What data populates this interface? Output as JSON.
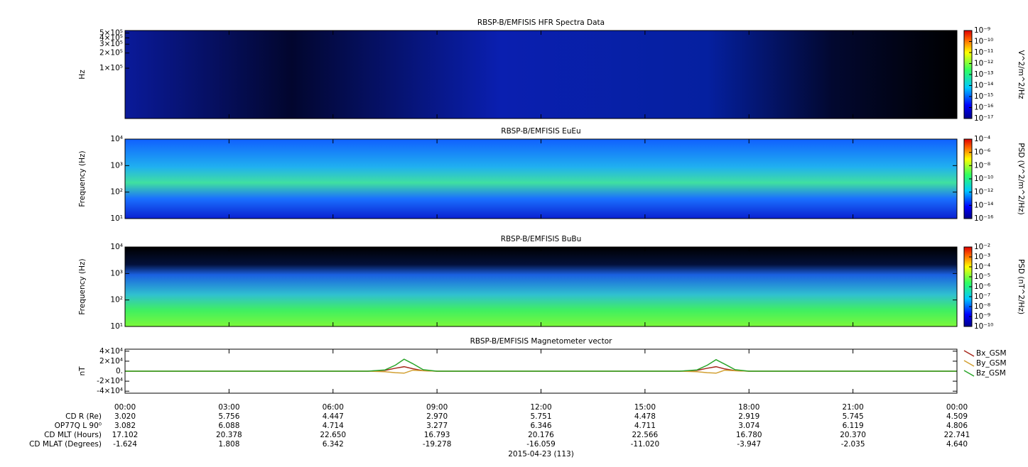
{
  "chart_data": [
    {
      "type": "spectrogram",
      "title": "RBSP-B/EMFISIS  HFR Spectra Data",
      "ylabel": "Hz",
      "ylog": true,
      "ylim": [
        10000,
        560000
      ],
      "yticks": [
        {
          "value": 100000,
          "label": "1×10⁵"
        },
        {
          "value": 200000,
          "label": "2×10⁵"
        },
        {
          "value": 300000,
          "label": "3×10⁵"
        },
        {
          "value": 400000,
          "label": "4×10⁵"
        },
        {
          "value": 500000,
          "label": "5×10⁵"
        }
      ],
      "zlabel": "V^2/m^2/Hz",
      "zlim": [
        1e-17,
        1e-09
      ],
      "zticks": [
        {
          "value": 1e-17,
          "label": "10⁻¹⁷"
        },
        {
          "value": 1e-16,
          "label": "10⁻¹⁶"
        },
        {
          "value": 1e-15,
          "label": "10⁻¹⁵"
        },
        {
          "value": 1e-14,
          "label": "10⁻¹⁴"
        },
        {
          "value": 1e-13,
          "label": "10⁻¹³"
        },
        {
          "value": 1e-12,
          "label": "10⁻¹²"
        },
        {
          "value": 1e-11,
          "label": "10⁻¹¹"
        },
        {
          "value": 1e-10,
          "label": "10⁻¹⁰"
        },
        {
          "value": 1e-09,
          "label": "10⁻⁹"
        }
      ]
    },
    {
      "type": "spectrogram",
      "title": "RBSP-B/EMFISIS  EuEu",
      "ylabel": "Frequency (Hz)",
      "ylog": true,
      "ylim": [
        10,
        10000
      ],
      "yticks": [
        {
          "value": 10,
          "label": "10¹"
        },
        {
          "value": 100,
          "label": "10²"
        },
        {
          "value": 1000,
          "label": "10³"
        },
        {
          "value": 10000,
          "label": "10⁴"
        }
      ],
      "zlabel": "PSD (V^2/m^2/Hz)",
      "zlim": [
        1e-16,
        0.0001
      ],
      "zticks": [
        {
          "value": 1e-16,
          "label": "10⁻¹⁶"
        },
        {
          "value": 1e-14,
          "label": "10⁻¹⁴"
        },
        {
          "value": 1e-12,
          "label": "10⁻¹²"
        },
        {
          "value": 1e-10,
          "label": "10⁻¹⁰"
        },
        {
          "value": 1e-08,
          "label": "10⁻⁸"
        },
        {
          "value": 1e-06,
          "label": "10⁻⁶"
        },
        {
          "value": 0.0001,
          "label": "10⁻⁴"
        }
      ]
    },
    {
      "type": "spectrogram",
      "title": "RBSP-B/EMFISIS  BuBu",
      "ylabel": "Frequency (Hz)",
      "ylog": true,
      "ylim": [
        10,
        10000
      ],
      "yticks": [
        {
          "value": 10,
          "label": "10¹"
        },
        {
          "value": 100,
          "label": "10²"
        },
        {
          "value": 1000,
          "label": "10³"
        },
        {
          "value": 10000,
          "label": "10⁴"
        }
      ],
      "zlabel": "PSD (nT^2/Hz)",
      "zlim": [
        1e-10,
        0.01
      ],
      "zticks": [
        {
          "value": 1e-10,
          "label": "10⁻¹⁰"
        },
        {
          "value": 1e-09,
          "label": "10⁻⁹"
        },
        {
          "value": 1e-08,
          "label": "10⁻⁸"
        },
        {
          "value": 1e-07,
          "label": "10⁻⁷"
        },
        {
          "value": 1e-06,
          "label": "10⁻⁶"
        },
        {
          "value": 1e-05,
          "label": "10⁻⁵"
        },
        {
          "value": 0.0001,
          "label": "10⁻⁴"
        },
        {
          "value": 0.001,
          "label": "10⁻³"
        },
        {
          "value": 0.01,
          "label": "10⁻²"
        }
      ]
    },
    {
      "type": "line",
      "title": "RBSP-B/EMFISIS  Magnetometer vector",
      "ylabel": "nT",
      "ylim": [
        -44000,
        44000
      ],
      "yticks": [
        {
          "value": -40000,
          "label": "-4×10⁴"
        },
        {
          "value": -20000,
          "label": "-2×10⁴"
        },
        {
          "value": 0,
          "label": "0."
        },
        {
          "value": 20000,
          "label": "2×10⁴"
        },
        {
          "value": 40000,
          "label": "4×10⁴"
        }
      ],
      "xlim": [
        0,
        24
      ],
      "xticks": [
        {
          "value": 0,
          "label": "00:00"
        },
        {
          "value": 3,
          "label": "03:00"
        },
        {
          "value": 6,
          "label": "06:00"
        },
        {
          "value": 9,
          "label": "09:00"
        },
        {
          "value": 12,
          "label": "12:00"
        },
        {
          "value": 15,
          "label": "15:00"
        },
        {
          "value": 18,
          "label": "18:00"
        },
        {
          "value": 21,
          "label": "21:00"
        },
        {
          "value": 24,
          "label": "00:00"
        }
      ],
      "x": [
        0,
        7,
        7.5,
        7.8,
        8.05,
        8.3,
        8.6,
        9,
        16,
        16.5,
        16.8,
        17.05,
        17.3,
        17.6,
        18,
        24
      ],
      "series": [
        {
          "name": "Bx_GSM",
          "color": "#a8281c",
          "values": [
            0,
            0,
            1500,
            6000,
            9000,
            5000,
            1000,
            0,
            0,
            1500,
            6000,
            9000,
            4500,
            1000,
            0,
            0
          ]
        },
        {
          "name": "By_GSM",
          "color": "#d2a032",
          "values": [
            0,
            0,
            -1000,
            -3000,
            -4000,
            2000,
            800,
            0,
            0,
            -1000,
            -3000,
            -4000,
            2000,
            800,
            0,
            0
          ]
        },
        {
          "name": "Bz_GSM",
          "color": "#2aa52a",
          "values": [
            0,
            0,
            2500,
            12000,
            24000,
            15000,
            3000,
            0,
            0,
            2500,
            12000,
            23000,
            14000,
            3000,
            0,
            0
          ]
        }
      ]
    }
  ],
  "ephemeris": {
    "date": "2015-04-23 (113)",
    "rows": [
      {
        "label": "CD R (Re)",
        "values": [
          "3.020",
          "5.756",
          "4.447",
          "2.970",
          "5.751",
          "4.478",
          "2.919",
          "5.745",
          "4.509"
        ]
      },
      {
        "label": "OP77Q L 90⁰",
        "values": [
          "3.082",
          "6.088",
          "4.714",
          "3.277",
          "6.346",
          "4.711",
          "3.074",
          "6.119",
          "4.806"
        ]
      },
      {
        "label": "CD MLT (Hours)",
        "values": [
          "17.102",
          "20.378",
          "22.650",
          "16.793",
          "20.176",
          "22.566",
          "16.780",
          "20.370",
          "22.741"
        ]
      },
      {
        "label": "CD MLAT (Degrees)",
        "values": [
          "-1.624",
          "1.808",
          "6.342",
          "-19.278",
          "-16.059",
          "-11.020",
          "-3.947",
          "-2.035",
          "4.640"
        ]
      }
    ]
  }
}
